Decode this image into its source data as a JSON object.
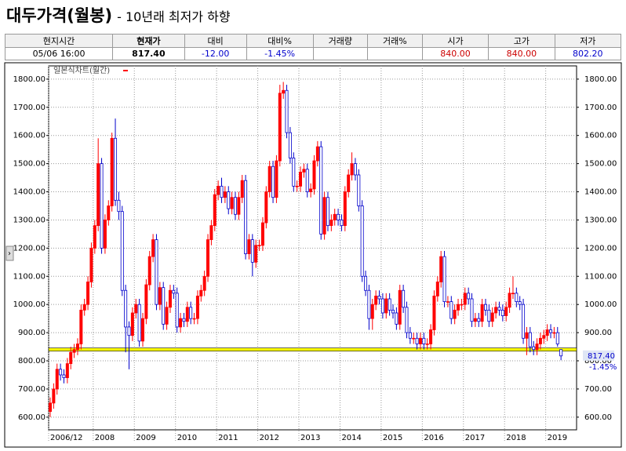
{
  "header": {
    "title": "대두가격(월봉)",
    "subtitle": "- 10년래 최저가 하향"
  },
  "info": {
    "columns": [
      {
        "header": "현지시간",
        "value": "05/06  16:00",
        "color": "#000000"
      },
      {
        "header": "현재가",
        "value": "817.40",
        "color": "#000000"
      },
      {
        "header": "대비",
        "value": "-12.00",
        "color": "#0000cc"
      },
      {
        "header": "대비%",
        "value": "-1.45%",
        "color": "#0000cc"
      },
      {
        "header": "거래량"
      },
      {
        "header": "거래%"
      },
      {
        "header": "시가",
        "value": "840.00",
        "color": "#cc0000"
      },
      {
        "header": "고가",
        "value": "840.00",
        "color": "#cc0000"
      },
      {
        "header": "저가",
        "value": "802.20",
        "color": "#0000cc"
      }
    ]
  },
  "chart_data": {
    "type": "candlestick",
    "legend": "일본식차트(월간)",
    "up_color": "#ff0000",
    "down_color": "#0000cc",
    "hline": 840,
    "hline_color": "#ffff00",
    "grid": true,
    "ylim": [
      555,
      1847
    ],
    "yticks": [
      {
        "value": 600,
        "label": "600.00"
      },
      {
        "value": 700,
        "label": "700.00"
      },
      {
        "value": 800,
        "label": "800.00"
      },
      {
        "value": 900,
        "label": "900.00"
      },
      {
        "value": 1000,
        "label": "1000.00"
      },
      {
        "value": 1100,
        "label": "1100.00"
      },
      {
        "value": 1200,
        "label": "1200.00"
      },
      {
        "value": 1300,
        "label": "1300.00"
      },
      {
        "value": 1400,
        "label": "1400.00"
      },
      {
        "value": 1500,
        "label": "1500.00"
      },
      {
        "value": 1600,
        "label": "1600.00"
      },
      {
        "value": 1700,
        "label": "1700.00"
      },
      {
        "value": 1800,
        "label": "1800.00"
      }
    ],
    "categories": [
      "2006/12",
      null,
      null,
      null,
      null,
      null,
      null,
      null,
      null,
      null,
      null,
      null,
      null,
      "2008",
      null,
      null,
      null,
      null,
      null,
      null,
      null,
      null,
      null,
      null,
      null,
      "2009",
      null,
      null,
      null,
      null,
      null,
      null,
      null,
      null,
      null,
      null,
      null,
      "2010",
      null,
      null,
      null,
      null,
      null,
      null,
      null,
      null,
      null,
      null,
      null,
      "2011",
      null,
      null,
      null,
      null,
      null,
      null,
      null,
      null,
      null,
      null,
      null,
      "2012",
      null,
      null,
      null,
      null,
      null,
      null,
      null,
      null,
      null,
      null,
      null,
      "2013",
      null,
      null,
      null,
      null,
      null,
      null,
      null,
      null,
      null,
      null,
      null,
      "2014",
      null,
      null,
      null,
      null,
      null,
      null,
      null,
      null,
      null,
      null,
      null,
      "2015",
      null,
      null,
      null,
      null,
      null,
      null,
      null,
      null,
      null,
      null,
      null,
      "2016",
      null,
      null,
      null,
      null,
      null,
      null,
      null,
      null,
      null,
      null,
      null,
      "2017",
      null,
      null,
      null,
      null,
      null,
      null,
      null,
      null,
      null,
      null,
      null,
      "2018",
      null,
      null,
      null,
      null,
      null,
      null,
      null,
      null,
      null,
      null,
      null,
      "2019",
      null,
      null,
      null,
      null
    ],
    "open": [
      620,
      650,
      700,
      770,
      750,
      740,
      790,
      830,
      840,
      860,
      980,
      1000,
      1080,
      1200,
      1280,
      1500,
      1200,
      1300,
      1350,
      1590,
      1370,
      1330,
      1050,
      920,
      890,
      970,
      1000,
      870,
      950,
      1070,
      1170,
      1230,
      1000,
      1060,
      930,
      990,
      1050,
      1040,
      920,
      950,
      940,
      990,
      950,
      950,
      1030,
      1050,
      1100,
      1230,
      1280,
      1390,
      1420,
      1380,
      1400,
      1340,
      1380,
      1320,
      1380,
      1440,
      1180,
      1230,
      1150,
      1210,
      1210,
      1290,
      1400,
      1490,
      1380,
      1510,
      1750,
      1760,
      1610,
      1520,
      1420,
      1420,
      1470,
      1480,
      1400,
      1410,
      1510,
      1560,
      1250,
      1380,
      1280,
      1300,
      1320,
      1300,
      1280,
      1400,
      1460,
      1500,
      1460,
      1350,
      1100,
      1050,
      950,
      1000,
      1030,
      1020,
      970,
      1020,
      980,
      970,
      930,
      1050,
      990,
      900,
      880,
      880,
      860,
      880,
      860,
      860,
      910,
      1030,
      1080,
      1170,
      1010,
      1010,
      950,
      980,
      1000,
      1000,
      1040,
      1020,
      940,
      950,
      940,
      1000,
      980,
      940,
      970,
      990,
      980,
      960,
      990,
      1040,
      1040,
      1010,
      1000,
      880,
      900,
      850,
      840,
      860,
      880,
      890,
      910,
      900,
      900,
      840
    ],
    "high": [
      670,
      720,
      790,
      790,
      770,
      810,
      850,
      860,
      880,
      1000,
      1020,
      1100,
      1220,
      1300,
      1590,
      1520,
      1320,
      1370,
      1610,
      1660,
      1400,
      1350,
      1070,
      940,
      990,
      1020,
      1020,
      970,
      1090,
      1190,
      1250,
      1250,
      1080,
      1080,
      1010,
      1070,
      1070,
      1060,
      970,
      970,
      1010,
      1010,
      970,
      1050,
      1070,
      1120,
      1250,
      1300,
      1410,
      1440,
      1450,
      1420,
      1420,
      1400,
      1400,
      1400,
      1460,
      1460,
      1250,
      1250,
      1230,
      1230,
      1310,
      1420,
      1510,
      1510,
      1530,
      1780,
      1790,
      1780,
      1630,
      1540,
      1440,
      1490,
      1500,
      1500,
      1430,
      1530,
      1580,
      1580,
      1400,
      1400,
      1320,
      1340,
      1340,
      1320,
      1420,
      1480,
      1540,
      1520,
      1480,
      1370,
      1120,
      1070,
      1020,
      1050,
      1050,
      1040,
      1040,
      1040,
      1000,
      990,
      1070,
      1070,
      1010,
      920,
      900,
      900,
      900,
      900,
      880,
      930,
      1050,
      1100,
      1190,
      1190,
      1030,
      1030,
      1000,
      1020,
      1020,
      1060,
      1060,
      1040,
      970,
      970,
      1020,
      1020,
      1000,
      990,
      1010,
      1010,
      1000,
      1010,
      1060,
      1100,
      1060,
      1030,
      1020,
      920,
      920,
      870,
      880,
      900,
      910,
      930,
      930,
      920,
      920,
      840
    ],
    "low": [
      600,
      630,
      680,
      730,
      720,
      720,
      770,
      810,
      820,
      840,
      960,
      980,
      1060,
      1180,
      1260,
      1180,
      1180,
      1280,
      1330,
      1350,
      1300,
      1030,
      830,
      770,
      870,
      950,
      850,
      850,
      930,
      1050,
      1150,
      980,
      980,
      910,
      910,
      970,
      1020,
      900,
      900,
      920,
      920,
      930,
      930,
      930,
      1010,
      1030,
      1080,
      1210,
      1260,
      1370,
      1360,
      1360,
      1320,
      1320,
      1300,
      1300,
      1360,
      1160,
      1160,
      1100,
      1130,
      1190,
      1190,
      1270,
      1380,
      1360,
      1360,
      1490,
      1730,
      1590,
      1500,
      1400,
      1400,
      1400,
      1450,
      1380,
      1380,
      1390,
      1490,
      1230,
      1230,
      1260,
      1260,
      1280,
      1280,
      1260,
      1260,
      1380,
      1440,
      1440,
      1330,
      1080,
      1030,
      910,
      910,
      980,
      1000,
      950,
      950,
      960,
      950,
      910,
      910,
      970,
      880,
      860,
      860,
      840,
      840,
      840,
      840,
      840,
      890,
      1010,
      1060,
      990,
      990,
      930,
      930,
      960,
      980,
      980,
      1000,
      920,
      920,
      920,
      920,
      960,
      920,
      920,
      950,
      960,
      940,
      940,
      970,
      1020,
      990,
      980,
      860,
      820,
      830,
      820,
      820,
      840,
      860,
      870,
      880,
      880,
      850,
      802.2
    ],
    "close": [
      650,
      700,
      770,
      750,
      740,
      790,
      830,
      840,
      860,
      980,
      1000,
      1080,
      1200,
      1280,
      1500,
      1200,
      1300,
      1350,
      1590,
      1370,
      1330,
      1050,
      920,
      890,
      970,
      1000,
      870,
      950,
      1070,
      1170,
      1230,
      1000,
      1060,
      930,
      990,
      1050,
      1040,
      920,
      950,
      940,
      990,
      950,
      950,
      1030,
      1050,
      1100,
      1230,
      1280,
      1390,
      1420,
      1380,
      1400,
      1340,
      1380,
      1320,
      1380,
      1440,
      1180,
      1230,
      1150,
      1210,
      1210,
      1290,
      1400,
      1490,
      1380,
      1510,
      1750,
      1760,
      1610,
      1520,
      1420,
      1420,
      1470,
      1480,
      1400,
      1410,
      1510,
      1560,
      1250,
      1380,
      1280,
      1300,
      1320,
      1300,
      1280,
      1400,
      1460,
      1500,
      1460,
      1350,
      1100,
      1050,
      950,
      1000,
      1030,
      1020,
      970,
      1020,
      980,
      970,
      930,
      1050,
      990,
      900,
      880,
      880,
      860,
      880,
      860,
      860,
      910,
      1030,
      1080,
      1170,
      1010,
      1010,
      950,
      980,
      1000,
      1000,
      1040,
      1020,
      940,
      950,
      940,
      1000,
      980,
      940,
      970,
      990,
      980,
      960,
      990,
      1040,
      1040,
      1010,
      1000,
      880,
      900,
      850,
      840,
      860,
      880,
      890,
      910,
      900,
      900,
      860,
      817.4
    ]
  }
}
